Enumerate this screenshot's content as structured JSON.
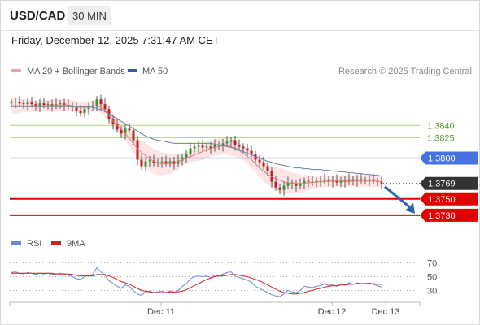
{
  "header": {
    "symbol": "USD/CAD",
    "timeframe": "30 MIN"
  },
  "datetime": "Friday, December 12, 2025 7:31:47 AM CET",
  "legend": {
    "ma20_bb": "MA 20 + Bollinger Bands",
    "ma50": "MA 50"
  },
  "copyright": "Research © 2025 Trading Central",
  "rsi_legend": {
    "rsi": "RSI",
    "ma9": "9MA"
  },
  "colors": {
    "support": "#e00000",
    "pivot": "#4472e0",
    "resistance": "#a9d57a",
    "last": "#333333",
    "bull": "#2f9a2f",
    "bear": "#c02020",
    "band": "#fde0e0",
    "arrow": "#2e63a8",
    "rsi": "#6a86d8",
    "rsi_ma": "#d42020"
  },
  "chart_data": [
    {
      "type": "candlestick",
      "title": "USD/CAD",
      "interval": "30 MIN",
      "x_ticks": [
        "Dec 11",
        "Dec 12",
        "Dec 13"
      ],
      "y_range": [
        1.3715,
        1.3895
      ],
      "price_levels": [
        {
          "label": "1.3840",
          "value": 1.384,
          "kind": "resistance"
        },
        {
          "label": "1.3825",
          "value": 1.3825,
          "kind": "resistance"
        },
        {
          "label": "1.3800",
          "value": 1.38,
          "kind": "pivot"
        },
        {
          "label": "1.3769",
          "value": 1.3769,
          "kind": "last"
        },
        {
          "label": "1.3750",
          "value": 1.375,
          "kind": "support"
        },
        {
          "label": "1.3730",
          "value": 1.373,
          "kind": "support"
        }
      ],
      "close": [
        1.3868,
        1.3869,
        1.3867,
        1.3866,
        1.3868,
        1.3866,
        1.3863,
        1.3867,
        1.3865,
        1.3866,
        1.3864,
        1.3866,
        1.3867,
        1.3865,
        1.3864,
        1.3862,
        1.3858,
        1.3855,
        1.386,
        1.3862,
        1.3863,
        1.3872,
        1.3866,
        1.386,
        1.3848,
        1.3842,
        1.3835,
        1.383,
        1.3836,
        1.3834,
        1.3822,
        1.3798,
        1.379,
        1.3796,
        1.3797,
        1.3794,
        1.3795,
        1.3796,
        1.3794,
        1.3796,
        1.3793,
        1.3797,
        1.3801,
        1.3805,
        1.3812,
        1.3814,
        1.3815,
        1.3813,
        1.3814,
        1.3812,
        1.3816,
        1.3815,
        1.3818,
        1.382,
        1.3822,
        1.3816,
        1.3814,
        1.3812,
        1.3809,
        1.3805,
        1.3798,
        1.3795,
        1.379,
        1.3784,
        1.3771,
        1.3764,
        1.3761,
        1.3766,
        1.377,
        1.3768,
        1.3766,
        1.3768,
        1.3772,
        1.3771,
        1.377,
        1.3772,
        1.3772,
        1.3774,
        1.3771,
        1.3773,
        1.377,
        1.3773,
        1.3771,
        1.3774,
        1.3772,
        1.3774,
        1.3773,
        1.3773,
        1.3774,
        1.3772,
        1.3771,
        1.3769
      ],
      "ma20": [
        1.3864,
        1.3864,
        1.3864,
        1.3864,
        1.3864,
        1.3864,
        1.3864,
        1.3864,
        1.3864,
        1.3864,
        1.3865,
        1.3865,
        1.3865,
        1.3865,
        1.3865,
        1.3864,
        1.3863,
        1.3862,
        1.3862,
        1.3863,
        1.3864,
        1.3864,
        1.3862,
        1.3858,
        1.3852,
        1.3845,
        1.384,
        1.3835,
        1.383,
        1.3824,
        1.3818,
        1.3812,
        1.3807,
        1.3803,
        1.3799,
        1.3796,
        1.3794,
        1.3793,
        1.3793,
        1.3793,
        1.3794,
        1.3796,
        1.3798,
        1.38,
        1.3802,
        1.3804,
        1.3806,
        1.3808,
        1.381,
        1.3812,
        1.3813,
        1.3814,
        1.3815,
        1.3815,
        1.3814,
        1.3812,
        1.3809,
        1.3806,
        1.3802,
        1.3798,
        1.3793,
        1.3788,
        1.3784,
        1.378,
        1.3777,
        1.3775,
        1.3773,
        1.3771,
        1.377,
        1.3769,
        1.3769,
        1.3769,
        1.3769,
        1.377,
        1.377,
        1.3771,
        1.3771,
        1.3771,
        1.3772,
        1.3772,
        1.3772,
        1.3772,
        1.3772,
        1.3772,
        1.3772,
        1.3772,
        1.3772,
        1.3772,
        1.3772,
        1.3772,
        1.3772,
        1.3771
      ],
      "ma50": [
        1.3863,
        1.3863,
        1.3863,
        1.3863,
        1.3863,
        1.3863,
        1.3863,
        1.3863,
        1.3863,
        1.3863,
        1.3863,
        1.3863,
        1.3863,
        1.3863,
        1.3863,
        1.3863,
        1.3863,
        1.3863,
        1.3863,
        1.3863,
        1.3862,
        1.3861,
        1.3859,
        1.3857,
        1.3854,
        1.3851,
        1.3848,
        1.3845,
        1.3842,
        1.3839,
        1.3836,
        1.3833,
        1.383,
        1.3827,
        1.3825,
        1.3823,
        1.3822,
        1.3821,
        1.382,
        1.3819,
        1.3818,
        1.3818,
        1.3818,
        1.3818,
        1.3818,
        1.3818,
        1.3818,
        1.3818,
        1.3818,
        1.3818,
        1.3817,
        1.3816,
        1.3815,
        1.3814,
        1.3813,
        1.3812,
        1.381,
        1.3808,
        1.3806,
        1.3804,
        1.3802,
        1.38,
        1.3798,
        1.3796,
        1.3795,
        1.3793,
        1.3792,
        1.3791,
        1.379,
        1.3789,
        1.3788,
        1.3788,
        1.3787,
        1.3787,
        1.3786,
        1.3786,
        1.3786,
        1.3785,
        1.3785,
        1.3784,
        1.3784,
        1.3783,
        1.3783,
        1.3782,
        1.3782,
        1.3781,
        1.3781,
        1.378,
        1.378,
        1.3779,
        1.3779,
        1.3778
      ],
      "forecast": {
        "from": 1.3769,
        "to": 1.373
      }
    },
    {
      "type": "line",
      "title": "RSI",
      "y_ticks": [
        70,
        50,
        30
      ],
      "y_range": [
        20,
        80
      ],
      "series": [
        {
          "name": "RSI",
          "values": [
            56,
            57,
            55,
            54,
            56,
            55,
            53,
            55,
            54,
            55,
            53,
            54,
            55,
            53,
            52,
            50,
            47,
            46,
            50,
            52,
            53,
            63,
            57,
            52,
            44,
            40,
            36,
            33,
            38,
            36,
            30,
            25,
            23,
            28,
            29,
            27,
            28,
            29,
            27,
            29,
            27,
            30,
            36,
            40,
            47,
            50,
            51,
            50,
            51,
            49,
            52,
            51,
            54,
            56,
            57,
            51,
            49,
            47,
            45,
            42,
            36,
            33,
            30,
            27,
            24,
            22,
            21,
            25,
            30,
            28,
            27,
            30,
            36,
            35,
            34,
            36,
            37,
            40,
            37,
            39,
            36,
            40,
            38,
            41,
            39,
            41,
            40,
            40,
            41,
            39,
            37,
            35
          ]
        },
        {
          "name": "9MA",
          "values": [
            55,
            55,
            55,
            55,
            55,
            55,
            55,
            55,
            55,
            55,
            55,
            54,
            54,
            54,
            54,
            53,
            52,
            51,
            51,
            51,
            51,
            53,
            53,
            53,
            51,
            49,
            46,
            43,
            41,
            39,
            36,
            33,
            30,
            29,
            28,
            27,
            27,
            27,
            27,
            28,
            28,
            28,
            29,
            31,
            34,
            37,
            40,
            43,
            46,
            48,
            50,
            51,
            51,
            52,
            53,
            53,
            52,
            51,
            50,
            48,
            46,
            44,
            41,
            38,
            35,
            32,
            29,
            27,
            26,
            25,
            25,
            26,
            27,
            29,
            30,
            32,
            33,
            35,
            36,
            37,
            37,
            38,
            38,
            39,
            39,
            40,
            40,
            40,
            40,
            40,
            39,
            39
          ]
        }
      ]
    }
  ]
}
